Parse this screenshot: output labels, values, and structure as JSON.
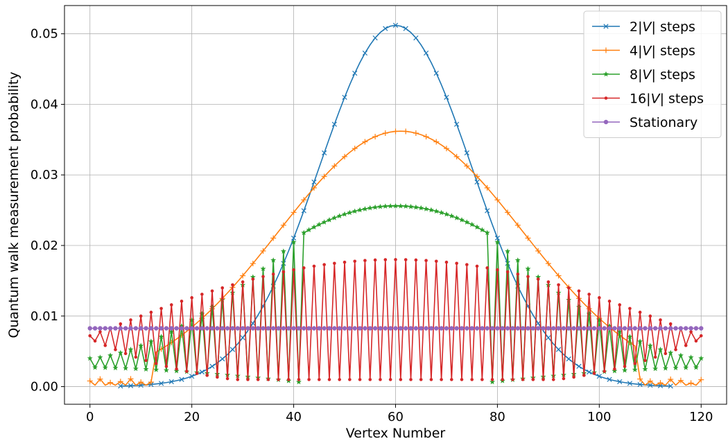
{
  "chart_data": {
    "type": "line",
    "xlabel": "Vertex Number",
    "ylabel": "Quantum walk measurement probability",
    "xlim": [
      -5,
      125
    ],
    "ylim": [
      -0.0025,
      0.054
    ],
    "x_ticks": [
      0,
      20,
      40,
      60,
      80,
      100,
      120
    ],
    "x_tick_labels": [
      "0",
      "20",
      "40",
      "60",
      "80",
      "100",
      "120"
    ],
    "y_ticks": [
      0.0,
      0.01,
      0.02,
      0.03,
      0.04,
      0.05
    ],
    "y_tick_labels": [
      "0.00",
      "0.01",
      "0.02",
      "0.03",
      "0.04",
      "0.05"
    ],
    "grid": true,
    "legend_position": "top-right",
    "series": [
      {
        "name": "2|V| steps",
        "legend_parts": [
          "2|",
          "V",
          "| steps"
        ],
        "color": "#1f77b4",
        "marker": "x",
        "x_range": [
          6,
          114
        ],
        "model": "gaussian",
        "peak_x": 60,
        "peak_value": 0.0512,
        "sigma": 15.0
      },
      {
        "name": "4|V| steps",
        "legend_parts": [
          "4|",
          "V",
          "| steps"
        ],
        "color": "#ff7f0e",
        "marker": "+",
        "x_range": [
          0,
          120
        ],
        "smooth_range": [
          13,
          107
        ],
        "model": "gaussian",
        "peak_x": 61,
        "peak_value": 0.0362,
        "sigma": 24.0,
        "edge_even_value": 0.0008,
        "edge_odd_value": 0.0005
      },
      {
        "name": "8|V| steps",
        "legend_parts": [
          "8|",
          "V",
          "| steps"
        ],
        "color": "#2ca02c",
        "marker": "*",
        "x_range": [
          0,
          120
        ],
        "plateau_range": [
          42,
          78
        ],
        "plateau_edge_value": 0.0218,
        "plateau_peak_value": 0.0256,
        "envelope_low_value": 0.004,
        "envelope_high_value": 0.0218
      },
      {
        "name": "16|V| steps",
        "legend_parts": [
          "16|",
          "V",
          "| steps"
        ],
        "color": "#d62728",
        "marker": ".",
        "x_range": [
          0,
          120
        ],
        "peak_value": 0.018,
        "edge_value": 0.0072,
        "trough_value": 0.001
      },
      {
        "name": "Stationary",
        "legend_parts": [
          "Stationary"
        ],
        "color": "#9467bd",
        "marker": "o",
        "x_range": [
          0,
          120
        ],
        "constant_value": 0.00826
      }
    ]
  }
}
